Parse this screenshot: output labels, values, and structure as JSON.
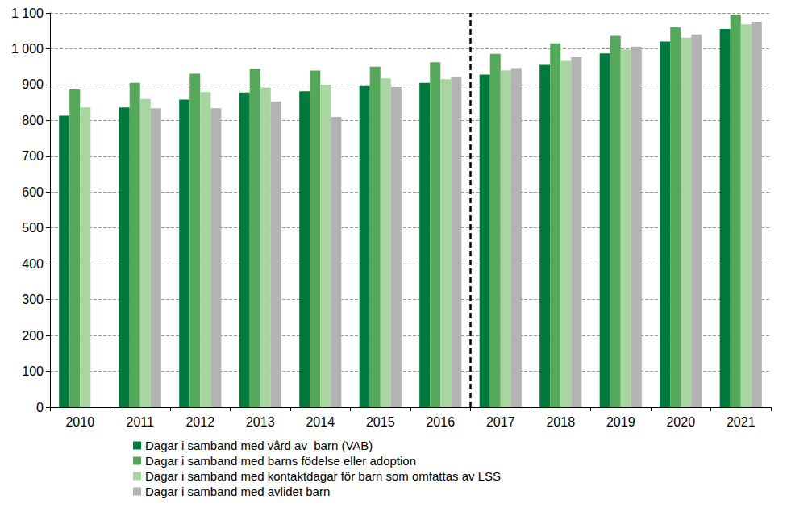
{
  "chart_data": {
    "type": "bar",
    "categories": [
      "2010",
      "2011",
      "2012",
      "2013",
      "2014",
      "2015",
      "2016",
      "2017",
      "2018",
      "2019",
      "2020",
      "2021"
    ],
    "series": [
      {
        "name": "Dagar i samband med vård av  barn (VAB)",
        "color": "#007a3d",
        "values": [
          813,
          836,
          858,
          878,
          881,
          896,
          905,
          928,
          955,
          987,
          1020,
          1055
        ]
      },
      {
        "name": "Dagar i samband med barns födelse eller adoption",
        "color": "#55a85a",
        "values": [
          887,
          905,
          930,
          944,
          939,
          950,
          962,
          986,
          1015,
          1036,
          1060,
          1095
        ]
      },
      {
        "name": "Dagar i samband med kontaktdagar för barn som omfattas av LSS",
        "color": "#a9d5a2",
        "values": [
          836,
          860,
          879,
          892,
          900,
          917,
          915,
          940,
          966,
          998,
          1031,
          1068
        ]
      },
      {
        "name": "Dagar i samband med avlidet barn",
        "color": "#b3b3b3",
        "values": [
          null,
          834,
          834,
          853,
          810,
          893,
          921,
          946,
          976,
          1006,
          1040,
          1075
        ]
      }
    ],
    "ylim": [
      0,
      1100
    ],
    "yticks": [
      0,
      100,
      200,
      300,
      400,
      500,
      600,
      700,
      800,
      900,
      {
        "value": 1000,
        "label": "1 000"
      },
      {
        "value": 1100,
        "label": "1 100"
      }
    ],
    "grid": true,
    "legend": "bottom"
  }
}
